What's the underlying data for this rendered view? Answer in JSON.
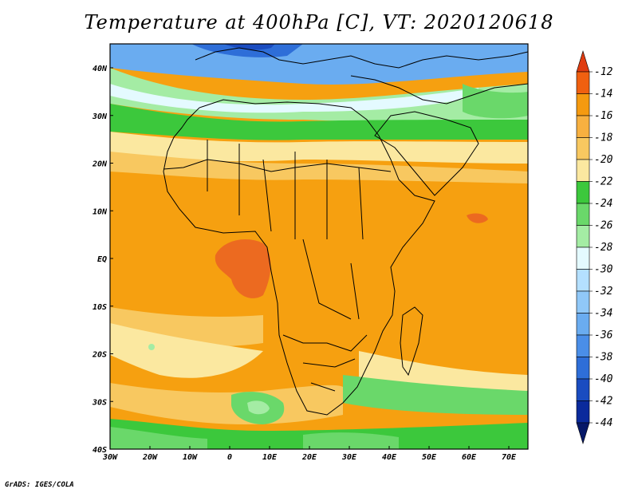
{
  "title": "Temperature at 400hPa [C], VT: 2020120618",
  "footer": "GrADS: IGES/COLA",
  "lon_labels": [
    "30W",
    "20W",
    "10W",
    "0",
    "10E",
    "20E",
    "30E",
    "40E",
    "50E",
    "60E",
    "70E"
  ],
  "lat_labels": [
    "40N",
    "30N",
    "20N",
    "10N",
    "EQ",
    "10S",
    "20S",
    "30S",
    "40S"
  ],
  "colorbar": {
    "labels": [
      "-12",
      "-14",
      "-16",
      "-18",
      "-20",
      "-22",
      "-24",
      "-26",
      "-28",
      "-30",
      "-32",
      "-34",
      "-36",
      "-38",
      "-40",
      "-42",
      "-44"
    ],
    "colors": [
      "#e03c10",
      "#f06010",
      "#f59a10",
      "#f7b040",
      "#f8c860",
      "#fbe8a0",
      "#3cc83c",
      "#6ad86a",
      "#a4eca4",
      "#e4faff",
      "#b4e0ff",
      "#90c8f8",
      "#6aacf0",
      "#4a8ee8",
      "#2e6ed8",
      "#1a4cc0",
      "#0a2a9c",
      "#061868"
    ]
  },
  "colors": {
    "ocean_orange": "#f6a010",
    "land_orange": "#f2a020",
    "hot": "#ec6a20",
    "light_yellow": "#fbe8a0",
    "pale": "#f8c860",
    "green": "#3cc83c",
    "light_green": "#a4eca4",
    "cyan": "#e4faff",
    "light_blue": "#90c8f8",
    "blue": "#4a8ee8",
    "dark_blue": "#1a4cc0"
  }
}
